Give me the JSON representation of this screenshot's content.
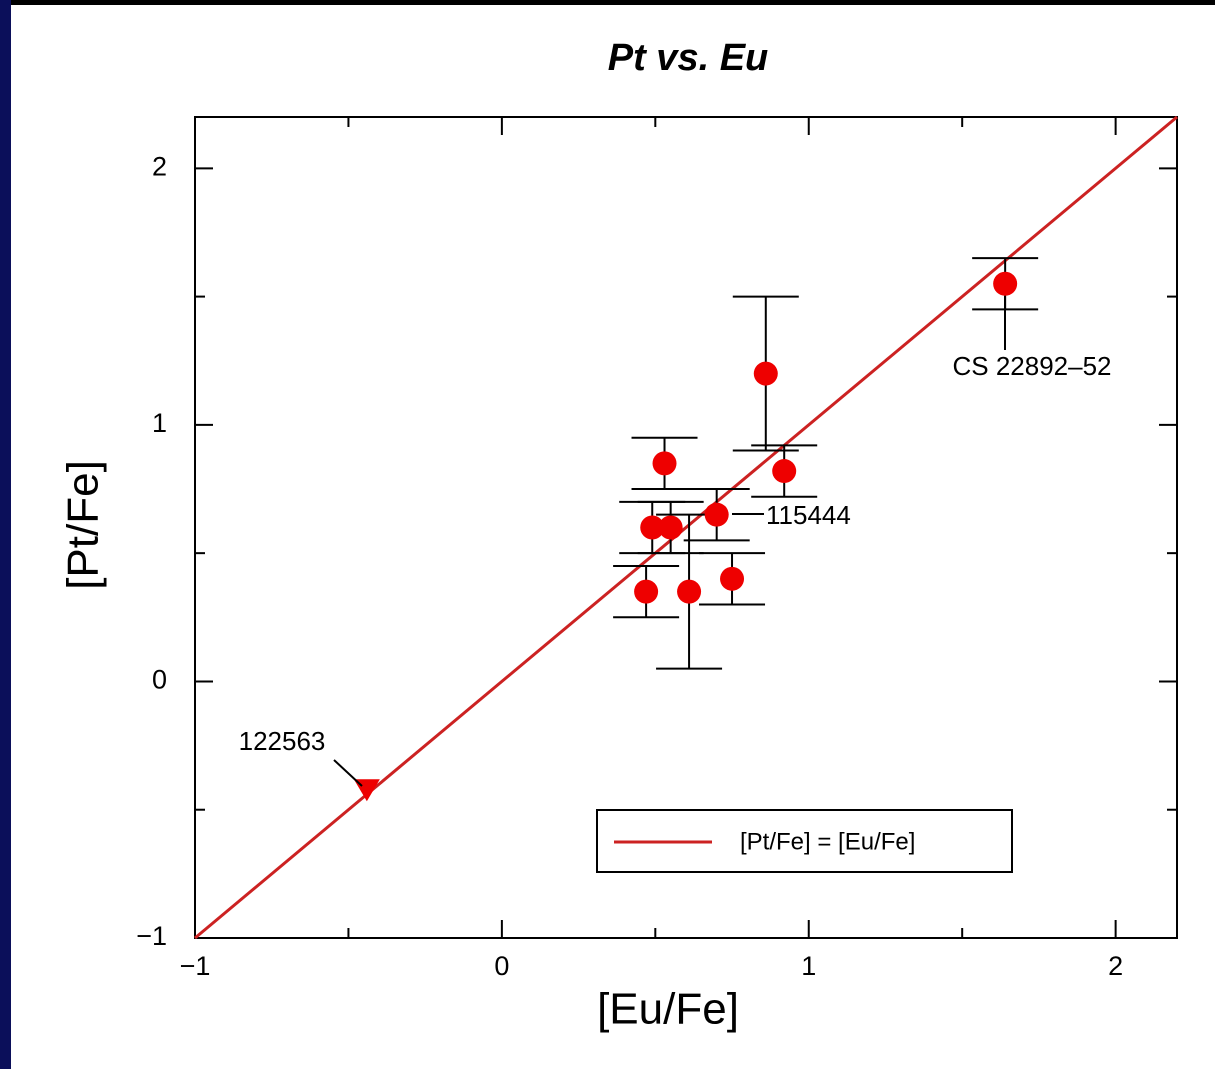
{
  "chart_data": {
    "type": "scatter",
    "title": "Pt vs. Eu",
    "x_label": "[Eu/Fe]",
    "y_label": "[Pt/Fe]",
    "xlim": [
      -1,
      2.2
    ],
    "ylim": [
      -1,
      2.2
    ],
    "xticks": [
      {
        "value": -1,
        "label": "−1"
      },
      0,
      1,
      2
    ],
    "yticks": [
      {
        "value": -1,
        "label": "−1"
      },
      0,
      1,
      2
    ],
    "xminorticks": [
      -0.5,
      0.5,
      1.5
    ],
    "yminorticks": [
      -0.5,
      0.5,
      1.5
    ],
    "series": [
      {
        "color": "#ee0000",
        "x": [
          1.64,
          0.86,
          0.92,
          0.53,
          0.49,
          0.55,
          0.7,
          0.47,
          0.61,
          0.75
        ],
        "y": [
          1.55,
          1.2,
          0.82,
          0.85,
          0.6,
          0.6,
          0.65,
          0.35,
          0.35,
          0.4
        ],
        "errors": [
          0.1,
          0.3,
          0.1,
          0.1,
          0.1,
          0.1,
          0.1,
          0.1,
          0.3,
          0.1
        ]
      }
    ],
    "upper_limits": {
      "color": "#ee0000",
      "x": [
        -0.44
      ],
      "y": [
        -0.42
      ]
    },
    "reference_line": {
      "name": "[Pt/Fe] = [Eu/Fe]",
      "color": "#cc2222",
      "x": [
        -1,
        2.2
      ],
      "y": [
        -1,
        2.2
      ]
    },
    "annotations": [
      {
        "text": "CS 22892–52"
      },
      {
        "text": "115444"
      },
      {
        "text": "122563"
      }
    ]
  }
}
